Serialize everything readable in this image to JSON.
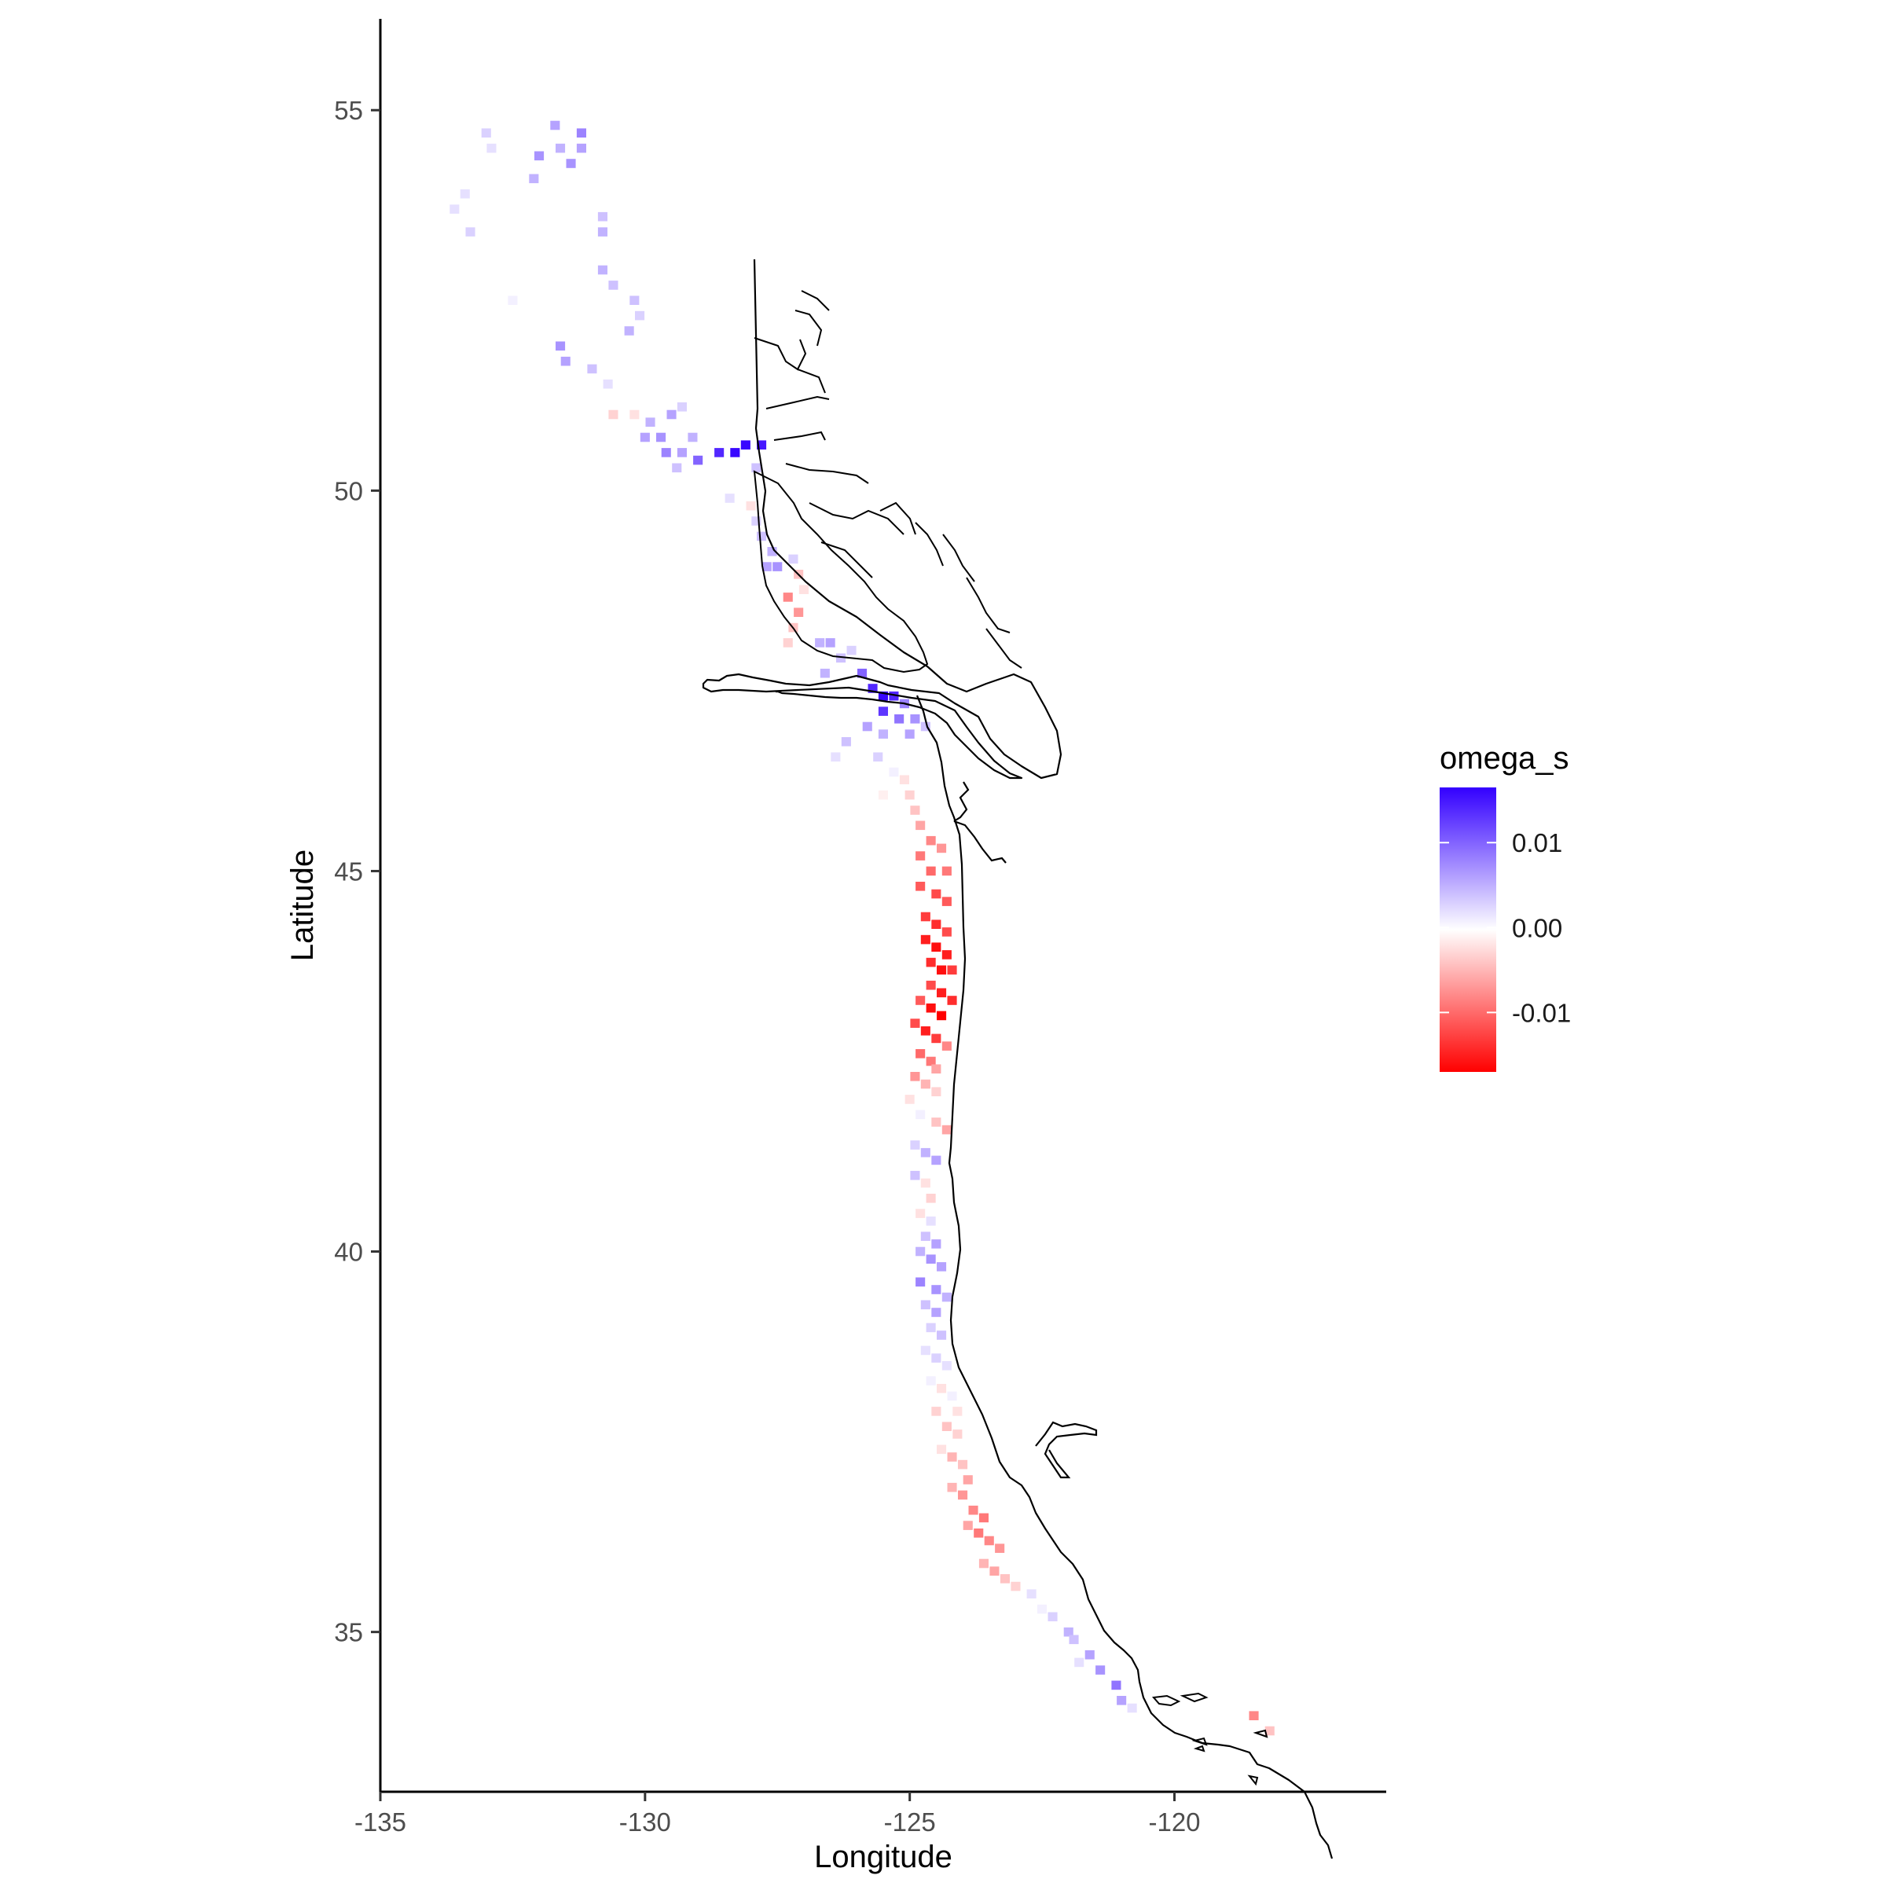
{
  "map": {
    "type": "raster-map",
    "xlabel": "Longitude",
    "ylabel": "Latitude",
    "xlim": [
      -135,
      -116
    ],
    "ylim": [
      32.9,
      56.2
    ],
    "x_ticks": [
      -135,
      -130,
      -125,
      -120
    ],
    "x_tick_labels": [
      "-135",
      "-130",
      "-125",
      "-120"
    ],
    "y_ticks": [
      35,
      40,
      45,
      50,
      55
    ],
    "y_tick_labels": [
      "35",
      "40",
      "45",
      "50",
      "55"
    ],
    "grid": false,
    "legend": {
      "title": "omega_s",
      "position": "right",
      "breaks": [
        0.01,
        0.0,
        -0.01
      ],
      "labels": [
        "0.01",
        "0.00",
        "-0.01"
      ],
      "range": [
        -0.017,
        0.0165
      ],
      "colors": {
        "high": "#3300ff",
        "mid": "#ffffff",
        "low": "#ff0000"
      }
    },
    "coastline_color": "#000000"
  },
  "chart_data": {
    "type": "heatmap",
    "value_name": "omega_s",
    "cell_size_deg": [
      0.18,
      0.12
    ],
    "points": [
      [
        -133.0,
        54.7,
        0.003
      ],
      [
        -132.9,
        54.5,
        0.002
      ],
      [
        -131.7,
        54.8,
        0.006
      ],
      [
        -131.2,
        54.7,
        0.008
      ],
      [
        -131.6,
        54.5,
        0.005
      ],
      [
        -131.4,
        54.3,
        0.007
      ],
      [
        -131.2,
        54.5,
        0.006
      ],
      [
        -132.0,
        54.4,
        0.007
      ],
      [
        -132.1,
        54.1,
        0.005
      ],
      [
        -133.4,
        53.9,
        0.002
      ],
      [
        -133.6,
        53.7,
        0.002
      ],
      [
        -133.3,
        53.4,
        0.003
      ],
      [
        -130.8,
        53.6,
        0.004
      ],
      [
        -130.8,
        53.4,
        0.005
      ],
      [
        -130.8,
        52.9,
        0.005
      ],
      [
        -130.6,
        52.7,
        0.004
      ],
      [
        -130.2,
        52.5,
        0.004
      ],
      [
        -130.1,
        52.3,
        0.003
      ],
      [
        -130.3,
        52.1,
        0.005
      ],
      [
        -132.5,
        52.5,
        0.001
      ],
      [
        -131.6,
        51.9,
        0.007
      ],
      [
        -131.5,
        51.7,
        0.006
      ],
      [
        -131.0,
        51.6,
        0.004
      ],
      [
        -130.7,
        51.4,
        0.002
      ],
      [
        -130.6,
        51.0,
        -0.003
      ],
      [
        -130.2,
        51.0,
        -0.002
      ],
      [
        -129.5,
        51.0,
        0.006
      ],
      [
        -129.3,
        51.1,
        0.003
      ],
      [
        -129.9,
        50.9,
        0.005
      ],
      [
        -130.0,
        50.7,
        0.006
      ],
      [
        -129.7,
        50.7,
        0.007
      ],
      [
        -129.6,
        50.5,
        0.008
      ],
      [
        -129.3,
        50.5,
        0.006
      ],
      [
        -129.1,
        50.7,
        0.005
      ],
      [
        -129.4,
        50.3,
        0.004
      ],
      [
        -129.0,
        50.4,
        0.01
      ],
      [
        -128.6,
        50.5,
        0.014
      ],
      [
        -128.3,
        50.5,
        0.016
      ],
      [
        -128.1,
        50.6,
        0.016
      ],
      [
        -127.8,
        50.6,
        0.015
      ],
      [
        -127.9,
        50.3,
        0.004
      ],
      [
        -128.4,
        49.9,
        0.002
      ],
      [
        -128.0,
        49.8,
        -0.002
      ],
      [
        -127.9,
        49.6,
        0.003
      ],
      [
        -127.8,
        49.4,
        0.004
      ],
      [
        -127.6,
        49.2,
        0.005
      ],
      [
        -127.7,
        49.0,
        0.006
      ],
      [
        -127.5,
        49.0,
        0.007
      ],
      [
        -127.2,
        49.1,
        0.003
      ],
      [
        -127.1,
        48.9,
        -0.004
      ],
      [
        -127.0,
        48.7,
        -0.002
      ],
      [
        -127.3,
        48.6,
        -0.008
      ],
      [
        -127.1,
        48.4,
        -0.007
      ],
      [
        -127.2,
        48.2,
        -0.004
      ],
      [
        -127.3,
        48.0,
        -0.003
      ],
      [
        -126.7,
        48.0,
        0.005
      ],
      [
        -126.5,
        48.0,
        0.006
      ],
      [
        -126.3,
        47.8,
        0.004
      ],
      [
        -126.6,
        47.6,
        0.005
      ],
      [
        -126.1,
        47.9,
        0.003
      ],
      [
        -125.9,
        47.6,
        0.01
      ],
      [
        -125.7,
        47.4,
        0.014
      ],
      [
        -125.5,
        47.3,
        0.016
      ],
      [
        -125.3,
        47.3,
        0.014
      ],
      [
        -125.5,
        47.1,
        0.013
      ],
      [
        -125.1,
        47.2,
        0.008
      ],
      [
        -125.2,
        47.0,
        0.009
      ],
      [
        -124.9,
        47.0,
        0.007
      ],
      [
        -125.0,
        46.8,
        0.006
      ],
      [
        -124.7,
        46.9,
        0.004
      ],
      [
        -125.8,
        46.9,
        0.006
      ],
      [
        -126.2,
        46.7,
        0.004
      ],
      [
        -126.4,
        46.5,
        0.002
      ],
      [
        -125.5,
        46.8,
        0.005
      ],
      [
        -125.6,
        46.5,
        0.003
      ],
      [
        -125.3,
        46.3,
        0.001
      ],
      [
        -125.1,
        46.2,
        -0.002
      ],
      [
        -125.5,
        46.0,
        -0.001
      ],
      [
        -125.0,
        46.0,
        -0.003
      ],
      [
        -124.9,
        45.8,
        -0.004
      ],
      [
        -124.8,
        45.6,
        -0.006
      ],
      [
        -124.6,
        45.4,
        -0.008
      ],
      [
        -124.4,
        45.3,
        -0.007
      ],
      [
        -124.8,
        45.2,
        -0.009
      ],
      [
        -124.6,
        45.0,
        -0.01
      ],
      [
        -124.3,
        45.0,
        -0.009
      ],
      [
        -124.8,
        44.8,
        -0.011
      ],
      [
        -124.5,
        44.7,
        -0.012
      ],
      [
        -124.3,
        44.6,
        -0.011
      ],
      [
        -124.7,
        44.4,
        -0.013
      ],
      [
        -124.5,
        44.3,
        -0.014
      ],
      [
        -124.3,
        44.2,
        -0.012
      ],
      [
        -124.7,
        44.1,
        -0.015
      ],
      [
        -124.5,
        44.0,
        -0.016
      ],
      [
        -124.3,
        43.9,
        -0.015
      ],
      [
        -124.6,
        43.8,
        -0.014
      ],
      [
        -124.4,
        43.7,
        -0.016
      ],
      [
        -124.2,
        43.7,
        -0.013
      ],
      [
        -124.6,
        43.5,
        -0.012
      ],
      [
        -124.4,
        43.4,
        -0.015
      ],
      [
        -124.2,
        43.3,
        -0.014
      ],
      [
        -124.8,
        43.3,
        -0.011
      ],
      [
        -124.6,
        43.2,
        -0.016
      ],
      [
        -124.4,
        43.1,
        -0.017
      ],
      [
        -124.9,
        43.0,
        -0.012
      ],
      [
        -124.7,
        42.9,
        -0.015
      ],
      [
        -124.5,
        42.8,
        -0.013
      ],
      [
        -124.8,
        42.6,
        -0.01
      ],
      [
        -124.6,
        42.5,
        -0.009
      ],
      [
        -124.9,
        42.3,
        -0.007
      ],
      [
        -124.7,
        42.2,
        -0.005
      ],
      [
        -124.5,
        42.1,
        -0.003
      ],
      [
        -125.0,
        42.0,
        -0.002
      ],
      [
        -124.8,
        41.8,
        0.001
      ],
      [
        -124.5,
        41.7,
        -0.004
      ],
      [
        -124.3,
        41.6,
        -0.006
      ],
      [
        -124.9,
        41.4,
        0.003
      ],
      [
        -124.7,
        41.3,
        0.005
      ],
      [
        -124.5,
        41.2,
        0.006
      ],
      [
        -124.9,
        41.0,
        0.004
      ],
      [
        -124.7,
        40.9,
        -0.002
      ],
      [
        -124.6,
        40.7,
        -0.003
      ],
      [
        -124.8,
        40.5,
        -0.002
      ],
      [
        -124.6,
        40.4,
        0.002
      ],
      [
        -124.7,
        40.2,
        0.004
      ],
      [
        -124.5,
        40.1,
        0.006
      ],
      [
        -124.8,
        40.0,
        0.005
      ],
      [
        -124.6,
        39.9,
        0.007
      ],
      [
        -124.4,
        39.8,
        0.006
      ],
      [
        -124.8,
        39.6,
        0.008
      ],
      [
        -124.5,
        39.5,
        0.007
      ],
      [
        -124.3,
        39.4,
        0.005
      ],
      [
        -124.7,
        39.3,
        0.004
      ],
      [
        -124.5,
        39.2,
        0.006
      ],
      [
        -124.6,
        39.0,
        0.003
      ],
      [
        -124.4,
        38.9,
        0.004
      ],
      [
        -124.7,
        38.7,
        0.002
      ],
      [
        -124.5,
        38.6,
        0.003
      ],
      [
        -124.3,
        38.5,
        0.002
      ],
      [
        -124.6,
        38.3,
        0.001
      ],
      [
        -124.4,
        38.2,
        -0.002
      ],
      [
        -124.2,
        38.1,
        0.001
      ],
      [
        -124.5,
        37.9,
        -0.003
      ],
      [
        -124.3,
        37.7,
        -0.004
      ],
      [
        -124.1,
        37.6,
        -0.003
      ],
      [
        -124.4,
        37.4,
        -0.002
      ],
      [
        -124.2,
        37.3,
        -0.005
      ],
      [
        -124.0,
        37.2,
        -0.004
      ],
      [
        -123.9,
        37.0,
        -0.006
      ],
      [
        -124.2,
        36.9,
        -0.005
      ],
      [
        -124.0,
        36.8,
        -0.007
      ],
      [
        -123.8,
        36.6,
        -0.008
      ],
      [
        -123.6,
        36.5,
        -0.009
      ],
      [
        -123.9,
        36.4,
        -0.006
      ],
      [
        -123.7,
        36.3,
        -0.009
      ],
      [
        -123.5,
        36.2,
        -0.008
      ],
      [
        -123.3,
        36.1,
        -0.007
      ],
      [
        -123.6,
        35.9,
        -0.005
      ],
      [
        -123.4,
        35.8,
        -0.006
      ],
      [
        -123.2,
        35.7,
        -0.004
      ],
      [
        -123.0,
        35.6,
        -0.003
      ],
      [
        -122.7,
        35.5,
        0.002
      ],
      [
        -122.5,
        35.3,
        0.001
      ],
      [
        -122.3,
        35.2,
        0.003
      ],
      [
        -122.0,
        35.0,
        0.005
      ],
      [
        -121.9,
        34.9,
        0.004
      ],
      [
        -121.6,
        34.7,
        0.006
      ],
      [
        -121.8,
        34.6,
        0.002
      ],
      [
        -121.4,
        34.5,
        0.007
      ],
      [
        -121.1,
        34.3,
        0.009
      ],
      [
        -121.0,
        34.1,
        0.006
      ],
      [
        -120.8,
        34.0,
        0.002
      ],
      [
        -118.5,
        33.9,
        -0.008
      ],
      [
        -118.2,
        33.7,
        -0.004
      ],
      [
        -124.1,
        37.9,
        -0.002
      ],
      [
        -124.5,
        42.4,
        -0.006
      ],
      [
        -124.3,
        42.7,
        -0.008
      ]
    ]
  }
}
